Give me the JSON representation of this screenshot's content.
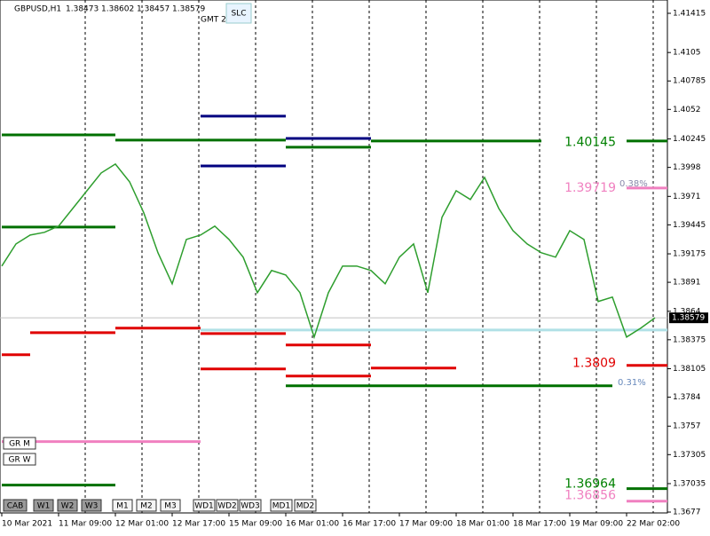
{
  "chart_data": {
    "type": "line",
    "header": {
      "symbol": "GBPUSD,H1",
      "open": 1.38473,
      "high": 1.38602,
      "low": 1.38457,
      "close": 1.38579
    },
    "gmt": "GMT 2",
    "slc": "SLC",
    "buttons_bottom": [
      "CAB",
      "W1",
      "W2",
      "W3",
      "M1",
      "M2",
      "M3",
      "WD1",
      "WD2",
      "WD3",
      "MD1",
      "MD2"
    ],
    "buttons_left": [
      "GR M",
      "GR W"
    ],
    "categories": [
      "10 Mar 2021",
      null,
      null,
      null,
      "11 Mar 09:00",
      null,
      null,
      null,
      "12 Mar 01:00",
      null,
      null,
      null,
      "12 Mar 17:00",
      null,
      null,
      null,
      "15 Mar 09:00",
      null,
      null,
      null,
      "16 Mar 01:00",
      null,
      null,
      null,
      "16 Mar 17:00",
      null,
      null,
      null,
      "17 Mar 09:00",
      null,
      null,
      null,
      "18 Mar 01:00",
      null,
      null,
      null,
      "18 Mar 17:00",
      null,
      null,
      null,
      "19 Mar 09:00",
      null,
      null,
      null,
      "22 Mar 02:00",
      null,
      null
    ],
    "series": [
      {
        "name": "GBPUSD",
        "color": "#2e9e2e",
        "values": [
          1.39061,
          1.39267,
          1.3935,
          1.39375,
          1.39433,
          1.39598,
          1.39763,
          1.39928,
          1.40011,
          1.39846,
          1.39557,
          1.39185,
          1.38896,
          1.39309,
          1.3935,
          1.39433,
          1.39309,
          1.39144,
          1.38813,
          1.3902,
          1.38978,
          1.38813,
          1.384,
          1.38813,
          1.39061,
          1.39061,
          1.3902,
          1.38896,
          1.39144,
          1.39267,
          1.38813,
          1.39515,
          1.39763,
          1.39681,
          1.39887,
          1.39598,
          1.39391,
          1.39267,
          1.39185,
          1.39144,
          1.39391,
          1.39309,
          1.38731,
          1.38772,
          1.384,
          1.38483,
          1.38579
        ]
      }
    ],
    "last_price": 1.38579,
    "ylim": [
      1.36762,
      1.41539
    ],
    "yticks": [
      1.41415,
      1.4105,
      1.40785,
      1.4052,
      1.40245,
      1.3998,
      1.3971,
      1.39445,
      1.39175,
      1.3891,
      1.3864,
      1.38375,
      1.38105,
      1.3784,
      1.3757,
      1.37305,
      1.37035,
      1.3677
    ],
    "levels": [
      {
        "price": 1.40283,
        "color": "#007000",
        "from": 0,
        "to": 8
      },
      {
        "price": 1.40234,
        "color": "#007000",
        "from": 8,
        "to": 14
      },
      {
        "price": 1.40234,
        "color": "#007000",
        "from": 14,
        "to": 20
      },
      {
        "price": 1.40168,
        "color": "#007000",
        "from": 20,
        "to": 26
      },
      {
        "price": 1.40226,
        "color": "#007000",
        "from": 26,
        "to": 38
      },
      {
        "price": 1.40226,
        "color": "#007000",
        "from": 44,
        "to": 47
      },
      {
        "price": 1.40457,
        "color": "#000080",
        "from": 14,
        "to": 20
      },
      {
        "price": 1.39994,
        "color": "#000080",
        "from": 14,
        "to": 20
      },
      {
        "price": 1.4025,
        "color": "#000080",
        "from": 20,
        "to": 26
      },
      {
        "price": 1.39424,
        "color": "#007000",
        "from": 0,
        "to": 8
      },
      {
        "price": 1.37946,
        "color": "#007000",
        "from": 20,
        "to": 43
      },
      {
        "price": 1.37021,
        "color": "#007000",
        "from": 0,
        "to": 8
      },
      {
        "price": 1.36988,
        "color": "#007000",
        "from": 44,
        "to": 47
      },
      {
        "price": 1.38235,
        "color": "#e00000",
        "from": 0,
        "to": 2
      },
      {
        "price": 1.38441,
        "color": "#e00000",
        "from": 2,
        "to": 8
      },
      {
        "price": 1.38483,
        "color": "#e00000",
        "from": 8,
        "to": 14
      },
      {
        "price": 1.38433,
        "color": "#e00000",
        "from": 14,
        "to": 20
      },
      {
        "price": 1.38326,
        "color": "#e00000",
        "from": 20,
        "to": 26
      },
      {
        "price": 1.38103,
        "color": "#e00000",
        "from": 14,
        "to": 20
      },
      {
        "price": 1.38037,
        "color": "#e00000",
        "from": 20,
        "to": 26
      },
      {
        "price": 1.38111,
        "color": "#e00000",
        "from": 26,
        "to": 32
      },
      {
        "price": 1.38136,
        "color": "#e00000",
        "from": 44,
        "to": 47
      },
      {
        "price": 1.37426,
        "color": "#f080c0",
        "from": 0,
        "to": 14
      },
      {
        "price": 1.39788,
        "color": "#f080c0",
        "from": 44,
        "to": 47
      },
      {
        "price": 1.36872,
        "color": "#f080c0",
        "from": 44,
        "to": 47
      },
      {
        "price": 1.38466,
        "color": "#b0e0e6",
        "from": 14,
        "to": 47
      }
    ],
    "price_labels": [
      {
        "value": 1.40145,
        "color": "#008000"
      },
      {
        "value": 1.39719,
        "color": "#f080c0"
      },
      {
        "value": 1.3809,
        "color": "#e00000"
      },
      {
        "value": 1.36964,
        "color": "#008000"
      },
      {
        "value": 1.36856,
        "color": "#f080c0"
      }
    ],
    "pct_labels": [
      "0.38%",
      "0.31%"
    ]
  }
}
